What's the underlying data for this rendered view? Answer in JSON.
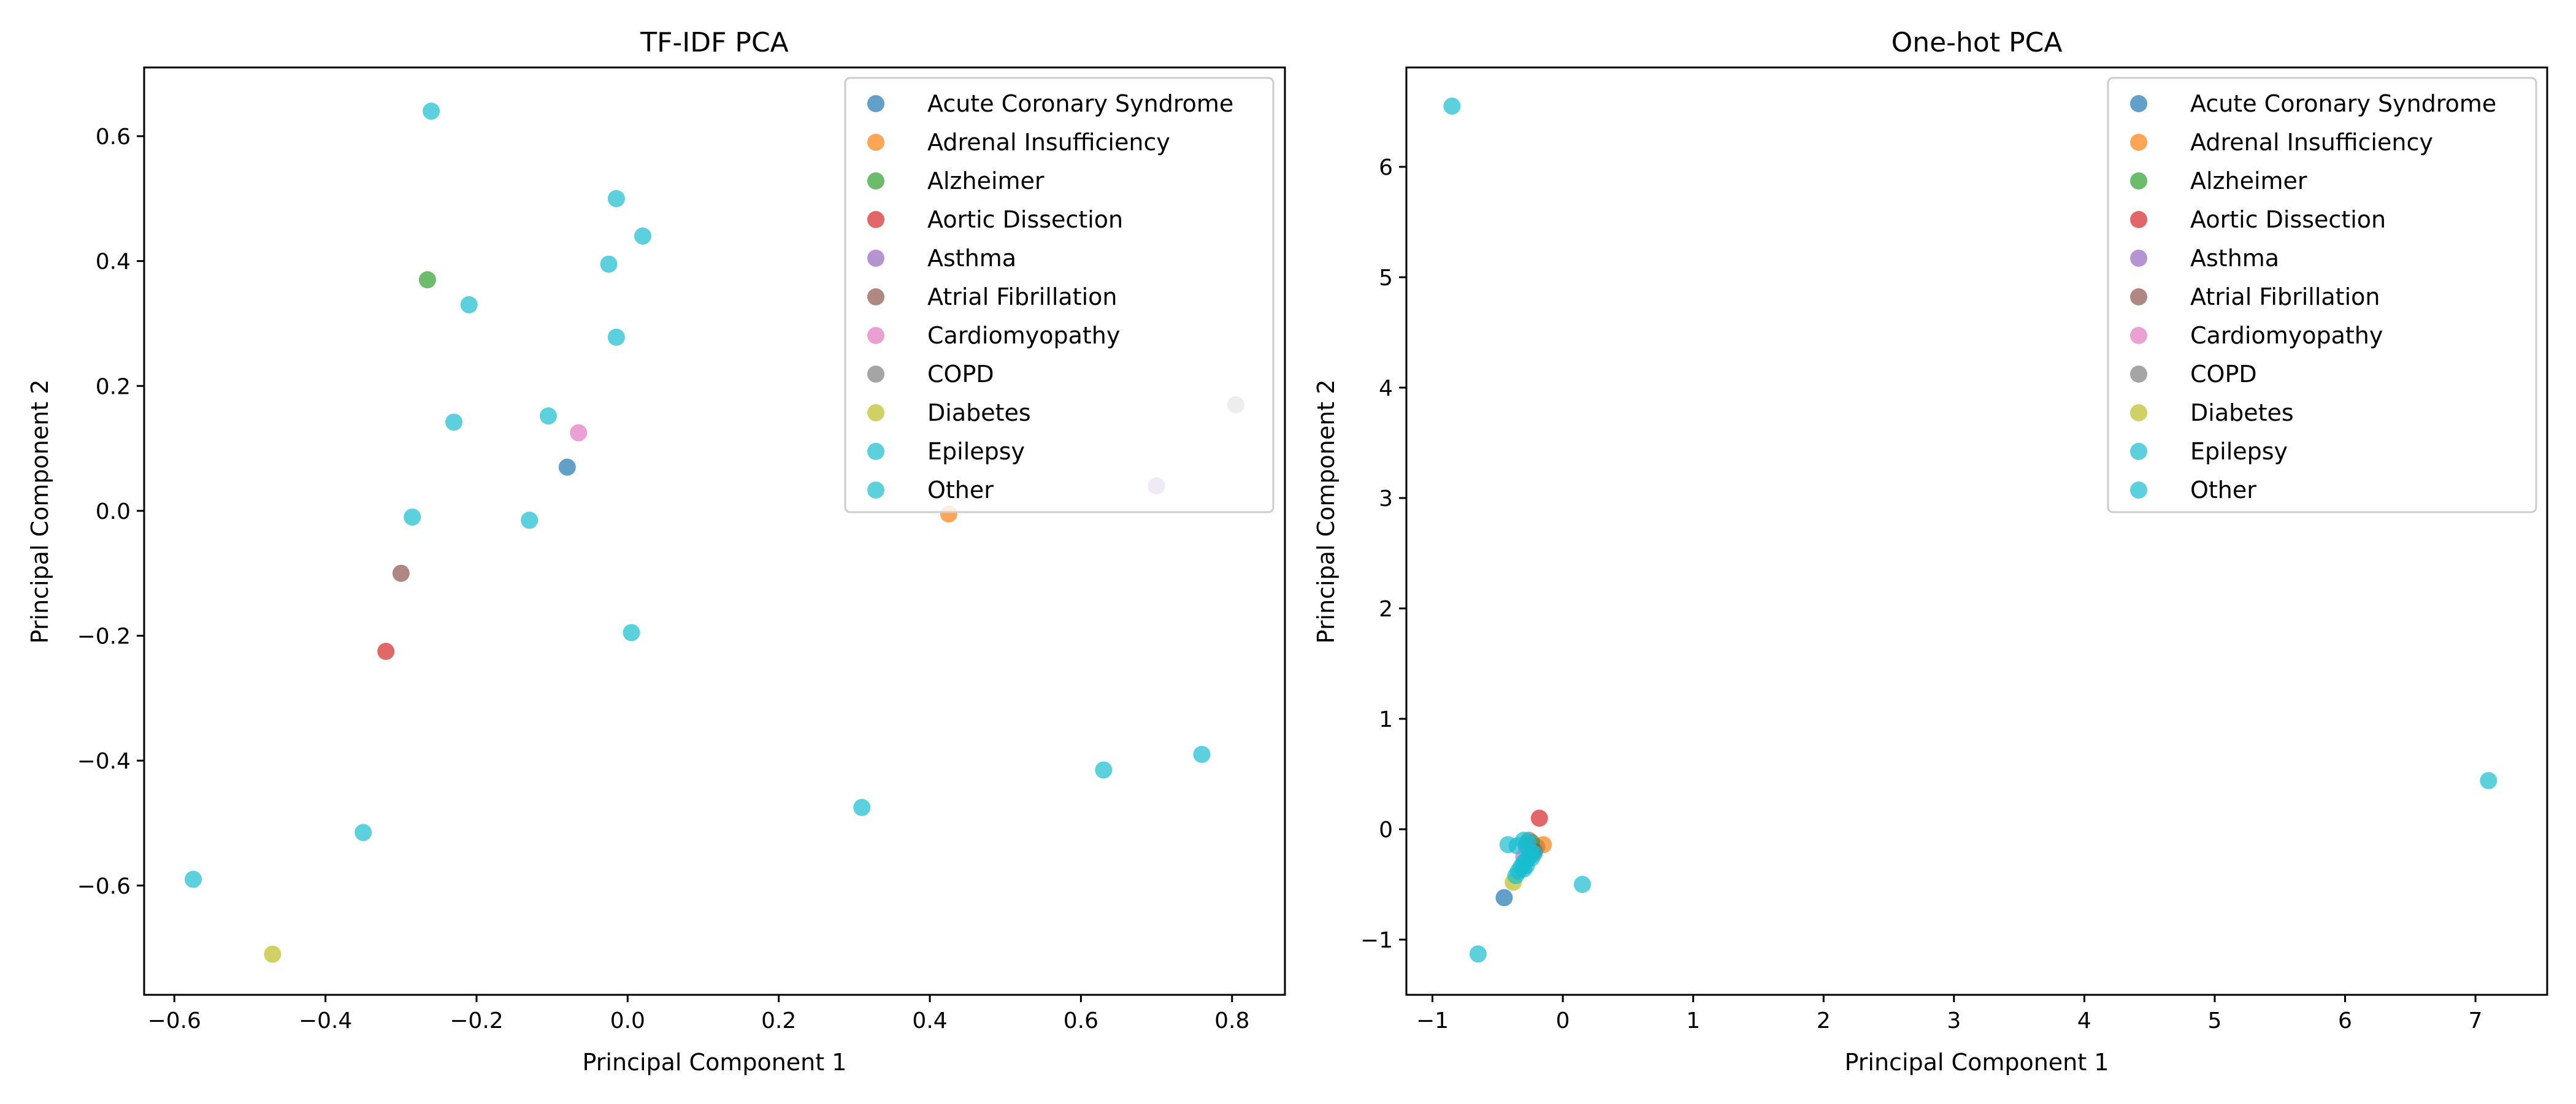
{
  "chart_data": [
    {
      "type": "scatter",
      "title": "TF-IDF PCA",
      "xlabel": "Principal Component 1",
      "ylabel": "Principal Component 2",
      "xlim": [
        -0.64,
        0.87
      ],
      "ylim": [
        -0.775,
        0.71
      ],
      "xticks": [
        -0.6,
        -0.4,
        -0.2,
        0.0,
        0.2,
        0.4,
        0.6,
        0.8
      ],
      "yticks": [
        -0.6,
        -0.4,
        -0.2,
        0.0,
        0.2,
        0.4,
        0.6
      ],
      "xtick_labels": [
        "−0.6",
        "−0.4",
        "−0.2",
        "0.0",
        "0.2",
        "0.4",
        "0.6",
        "0.8"
      ],
      "ytick_labels": [
        "−0.6",
        "−0.4",
        "−0.2",
        "0.0",
        "0.2",
        "0.4",
        "0.6"
      ],
      "legend_position": "top-right",
      "grid": false,
      "series": [
        {
          "name": "Acute Coronary Syndrome",
          "color": "#1f77b4",
          "points": [
            [
              -0.08,
              0.07
            ]
          ]
        },
        {
          "name": "Adrenal Insufficiency",
          "color": "#ff7f0e",
          "points": [
            [
              0.425,
              -0.005
            ]
          ]
        },
        {
          "name": "Alzheimer",
          "color": "#2ca02c",
          "points": [
            [
              -0.265,
              0.37
            ]
          ]
        },
        {
          "name": "Aortic Dissection",
          "color": "#d62728",
          "points": [
            [
              -0.32,
              -0.225
            ]
          ]
        },
        {
          "name": "Asthma",
          "color": "#9467bd",
          "points": [
            [
              0.7,
              0.04
            ]
          ]
        },
        {
          "name": "Atrial Fibrillation",
          "color": "#8c564b",
          "points": [
            [
              -0.3,
              -0.1
            ]
          ]
        },
        {
          "name": "Cardiomyopathy",
          "color": "#e377c2",
          "points": [
            [
              -0.065,
              0.125
            ]
          ]
        },
        {
          "name": "COPD",
          "color": "#7f7f7f",
          "points": [
            [
              0.805,
              0.17
            ]
          ]
        },
        {
          "name": "Diabetes",
          "color": "#bcbd22",
          "points": [
            [
              -0.47,
              -0.71
            ]
          ]
        },
        {
          "name": "Epilepsy",
          "color": "#17becf",
          "points": []
        },
        {
          "name": "Other",
          "color": "#17becf",
          "points": [
            [
              -0.26,
              0.64
            ],
            [
              -0.015,
              0.5
            ],
            [
              0.02,
              0.44
            ],
            [
              -0.025,
              0.395
            ],
            [
              -0.21,
              0.33
            ],
            [
              -0.015,
              0.278
            ],
            [
              -0.105,
              0.152
            ],
            [
              -0.23,
              0.142
            ],
            [
              -0.285,
              -0.01
            ],
            [
              -0.13,
              -0.015
            ],
            [
              0.005,
              -0.195
            ],
            [
              0.31,
              -0.475
            ],
            [
              0.63,
              -0.415
            ],
            [
              0.76,
              -0.39
            ],
            [
              -0.35,
              -0.515
            ],
            [
              -0.575,
              -0.59
            ]
          ]
        }
      ]
    },
    {
      "type": "scatter",
      "title": "One-hot PCA",
      "xlabel": "Principal Component 1",
      "ylabel": "Principal Component 2",
      "xlim": [
        -1.2,
        7.55
      ],
      "ylim": [
        -1.5,
        6.9
      ],
      "xticks": [
        -1,
        0,
        1,
        2,
        3,
        4,
        5,
        6,
        7
      ],
      "yticks": [
        -1,
        0,
        1,
        2,
        3,
        4,
        5,
        6
      ],
      "xtick_labels": [
        "−1",
        "0",
        "1",
        "2",
        "3",
        "4",
        "5",
        "6",
        "7"
      ],
      "ytick_labels": [
        "−1",
        "0",
        "1",
        "2",
        "3",
        "4",
        "5",
        "6"
      ],
      "legend_position": "top-right",
      "grid": false,
      "series": [
        {
          "name": "Acute Coronary Syndrome",
          "color": "#1f77b4",
          "points": [
            [
              -0.45,
              -0.62
            ],
            [
              -0.2,
              -0.16
            ]
          ]
        },
        {
          "name": "Adrenal Insufficiency",
          "color": "#ff7f0e",
          "points": [
            [
              -0.15,
              -0.14
            ]
          ]
        },
        {
          "name": "Alzheimer",
          "color": "#2ca02c",
          "points": [
            [
              -0.24,
              -0.12
            ]
          ]
        },
        {
          "name": "Aortic Dissection",
          "color": "#d62728",
          "points": [
            [
              -0.18,
              0.1
            ]
          ]
        },
        {
          "name": "Asthma",
          "color": "#9467bd",
          "points": [
            [
              -0.28,
              -0.15
            ]
          ]
        },
        {
          "name": "Atrial Fibrillation",
          "color": "#8c564b",
          "points": [
            [
              -0.22,
              -0.2
            ]
          ]
        },
        {
          "name": "Cardiomyopathy",
          "color": "#e377c2",
          "points": [
            [
              -0.3,
              -0.25
            ]
          ]
        },
        {
          "name": "COPD",
          "color": "#7f7f7f",
          "points": [
            [
              -0.26,
              -0.1
            ]
          ]
        },
        {
          "name": "Diabetes",
          "color": "#bcbd22",
          "points": [
            [
              -0.38,
              -0.48
            ]
          ]
        },
        {
          "name": "Epilepsy",
          "color": "#17becf",
          "points": []
        },
        {
          "name": "Other",
          "color": "#17becf",
          "points": [
            [
              -0.85,
              6.55
            ],
            [
              7.1,
              0.44
            ],
            [
              -0.65,
              -1.13
            ],
            [
              0.15,
              -0.5
            ],
            [
              -0.42,
              -0.14
            ],
            [
              -0.35,
              -0.15
            ],
            [
              -0.3,
              -0.1
            ],
            [
              -0.25,
              -0.2
            ],
            [
              -0.26,
              -0.25
            ],
            [
              -0.28,
              -0.28
            ],
            [
              -0.3,
              -0.3
            ],
            [
              -0.32,
              -0.34
            ],
            [
              -0.34,
              -0.38
            ],
            [
              -0.28,
              -0.33
            ],
            [
              -0.24,
              -0.26
            ],
            [
              -0.22,
              -0.22
            ],
            [
              -0.36,
              -0.42
            ],
            [
              -0.27,
              -0.12
            ],
            [
              -0.3,
              -0.36
            ]
          ]
        }
      ]
    }
  ]
}
